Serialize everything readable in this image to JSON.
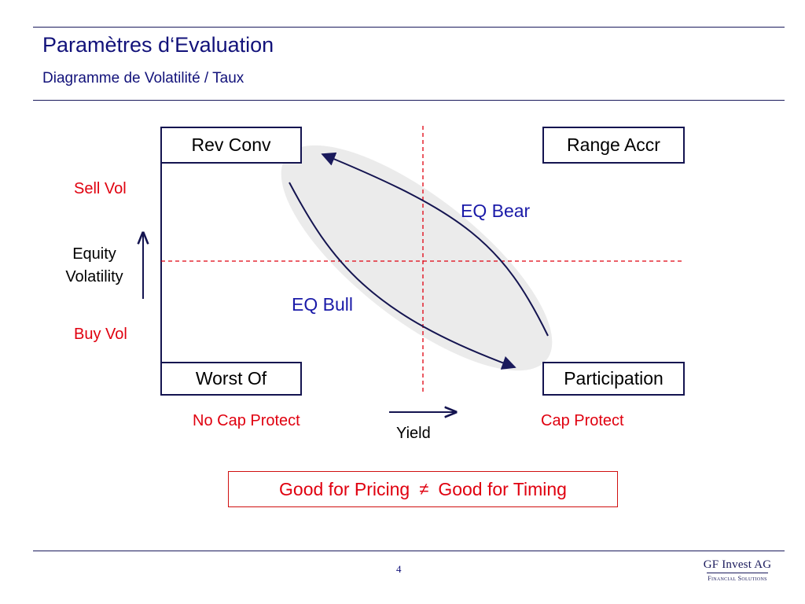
{
  "header": {
    "title": "Paramètres d‘Evaluation",
    "subtitle": "Diagramme de Volatilité / Taux"
  },
  "quadrants": {
    "top_left": "Rev Conv",
    "top_right": "Range Accr",
    "bottom_left": "Worst Of",
    "bottom_right": "Participation"
  },
  "y_axis": {
    "top": "Sell Vol",
    "label_line1": "Equity",
    "label_line2": "Volatility",
    "bottom": "Buy Vol"
  },
  "x_axis": {
    "left": "No Cap Protect",
    "label": "Yield",
    "right": "Cap Protect"
  },
  "curves": {
    "bear": "EQ Bear",
    "bull": "EQ Bull"
  },
  "conclusion": {
    "left": "Good for Pricing",
    "symbol": "≠",
    "right": "Good for Timing"
  },
  "footer": {
    "page": "4",
    "logo_main": "GF Invest AG",
    "logo_sub": "Financial Solutions"
  },
  "colors": {
    "navy": "#12127a",
    "red": "#e0000f",
    "curve_blue": "#1a1aa8",
    "ellipse_fill": "#ebebeb"
  }
}
